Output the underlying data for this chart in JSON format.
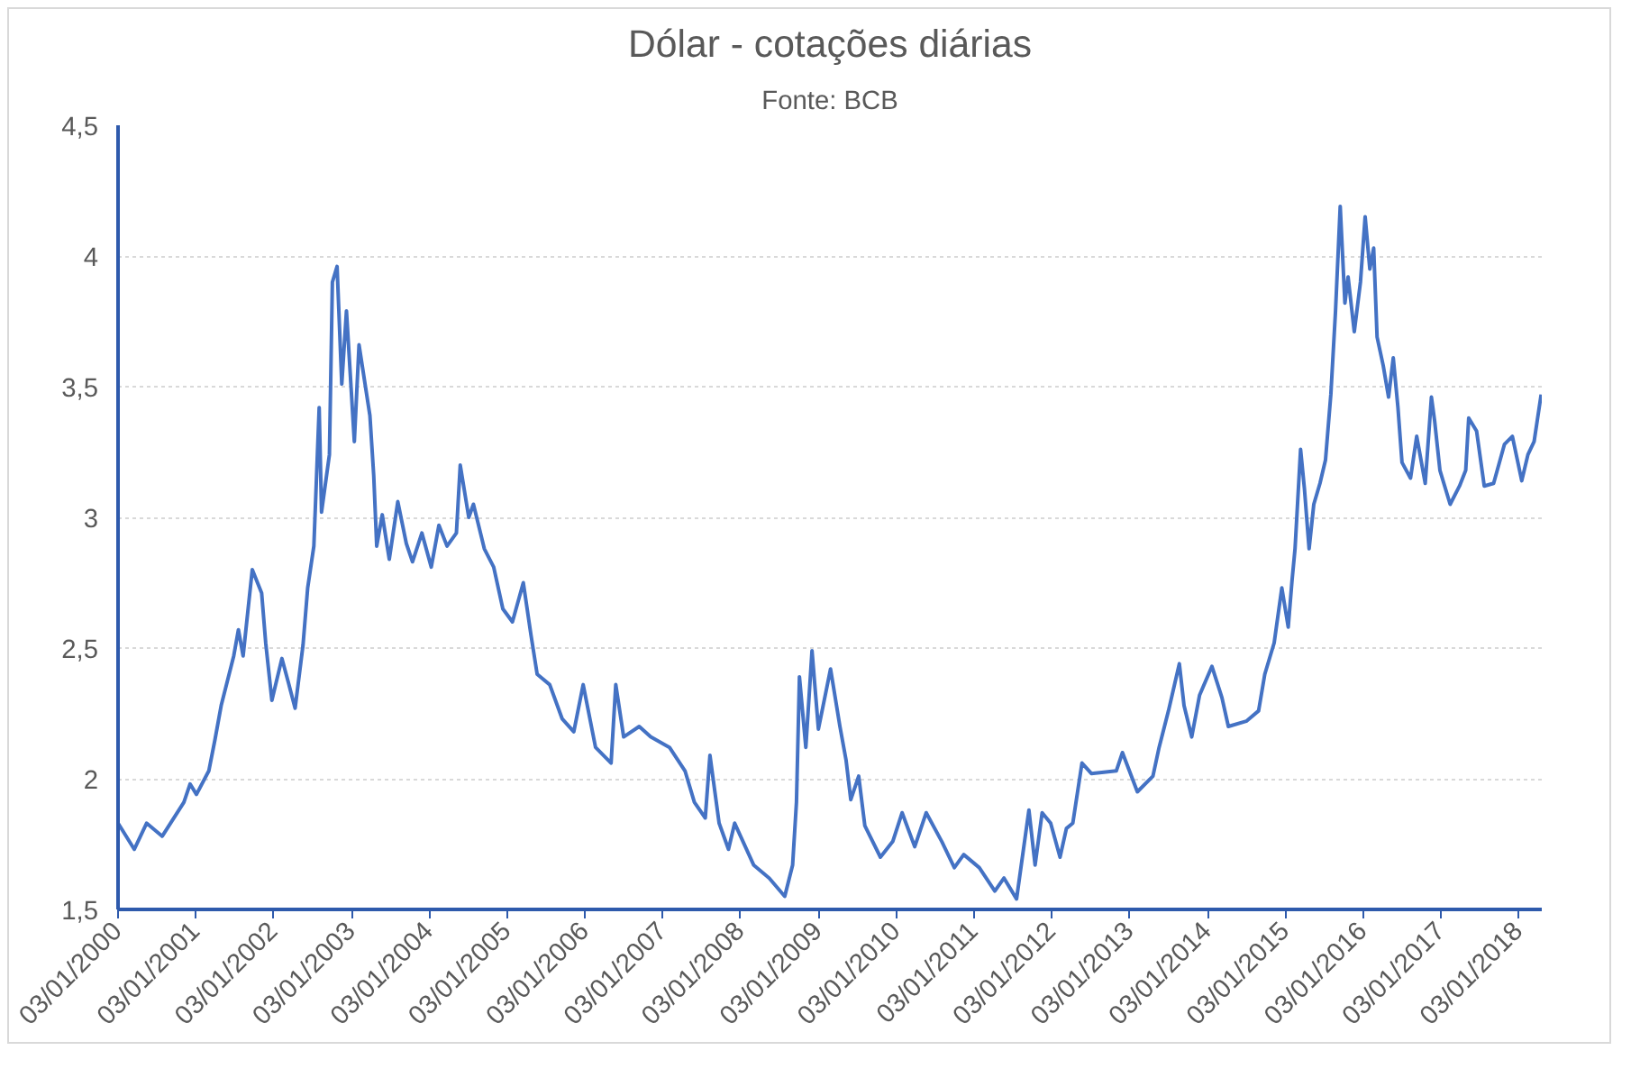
{
  "chart_data": {
    "type": "line",
    "title": "Dólar - cotações diárias",
    "subtitle": "Fonte: BCB",
    "x": [
      "2000-01-03",
      "2000-03-19",
      "2000-05-16",
      "2000-07-28",
      "2000-11-07",
      "2000-12-06",
      "2001-01-05",
      "2001-03-04",
      "2001-04-02",
      "2001-05-01",
      "2001-06-29",
      "2001-07-21",
      "2001-08-12",
      "2001-09-24",
      "2001-11-07",
      "2001-11-26",
      "2001-12-25",
      "2002-02-10",
      "2002-03-15",
      "2002-04-13",
      "2002-05-20",
      "2002-06-11",
      "2002-07-10",
      "2002-08-04",
      "2002-08-15",
      "2002-09-21",
      "2002-10-05",
      "2002-10-27",
      "2002-11-18",
      "2002-12-10",
      "2003-01-16",
      "2003-02-07",
      "2003-03-30",
      "2003-04-17",
      "2003-05-01",
      "2003-05-27",
      "2003-06-29",
      "2003-08-08",
      "2003-09-17",
      "2003-10-16",
      "2003-11-29",
      "2004-01-12",
      "2004-02-17",
      "2004-03-26",
      "2004-05-09",
      "2004-05-27",
      "2004-07-06",
      "2004-07-28",
      "2004-09-17",
      "2004-10-31",
      "2004-12-13",
      "2005-01-27",
      "2005-03-19",
      "2005-04-24",
      "2005-05-23",
      "2005-07-21",
      "2005-09-17",
      "2005-11-11",
      "2005-12-25",
      "2006-02-21",
      "2006-05-05",
      "2006-05-27",
      "2006-07-03",
      "2006-09-14",
      "2006-11-07",
      "2007-02-03",
      "2007-04-17",
      "2007-05-31",
      "2007-07-21",
      "2007-08-12",
      "2007-09-24",
      "2007-11-07",
      "2007-12-06",
      "2008-03-04",
      "2008-05-16",
      "2008-07-28",
      "2008-09-03",
      "2008-09-21",
      "2008-10-05",
      "2008-11-04",
      "2008-12-03",
      "2009-01-02",
      "2009-02-28",
      "2009-04-13",
      "2009-05-12",
      "2009-06-03",
      "2009-07-10",
      "2009-08-08",
      "2009-10-20",
      "2009-12-17",
      "2010-01-30",
      "2010-03-30",
      "2010-05-23",
      "2010-08-04",
      "2010-10-02",
      "2010-11-15",
      "2011-01-27",
      "2011-04-10",
      "2011-05-23",
      "2011-07-21",
      "2011-09-17",
      "2011-10-16",
      "2011-11-18",
      "2011-12-28",
      "2012-02-10",
      "2012-03-11",
      "2012-04-10",
      "2012-05-23",
      "2012-07-06",
      "2012-10-31",
      "2012-11-29",
      "2013-02-07",
      "2013-04-21",
      "2013-05-20",
      "2013-07-03",
      "2013-08-23",
      "2013-09-14",
      "2013-10-20",
      "2013-11-26",
      "2014-01-23",
      "2014-03-11",
      "2014-04-10",
      "2014-07-03",
      "2014-08-30",
      "2014-09-28",
      "2014-11-11",
      "2014-12-17",
      "2015-01-16",
      "2015-02-03",
      "2015-02-17",
      "2015-03-15",
      "2015-04-02",
      "2015-04-24",
      "2015-05-16",
      "2015-06-14",
      "2015-07-10",
      "2015-08-04",
      "2015-08-26",
      "2015-09-17",
      "2015-10-09",
      "2015-10-24",
      "2015-11-22",
      "2015-12-21",
      "2016-01-12",
      "2016-02-03",
      "2016-02-21",
      "2016-03-08",
      "2016-04-06",
      "2016-05-01",
      "2016-05-23",
      "2016-06-14",
      "2016-07-03",
      "2016-08-12",
      "2016-09-10",
      "2016-10-20",
      "2016-11-18",
      "2016-12-03",
      "2016-12-28",
      "2017-02-14",
      "2017-03-30",
      "2017-04-28",
      "2017-05-12",
      "2017-06-18",
      "2017-07-24",
      "2017-09-06",
      "2017-10-27",
      "2017-12-03",
      "2018-01-16",
      "2018-02-14",
      "2018-03-15",
      "2018-04-17"
    ],
    "series": [
      {
        "color": "#4472c4",
        "values": [
          1.83,
          1.73,
          1.83,
          1.78,
          1.91,
          1.98,
          1.94,
          2.03,
          2.15,
          2.28,
          2.47,
          2.57,
          2.47,
          2.8,
          2.71,
          2.52,
          2.3,
          2.46,
          2.36,
          2.27,
          2.51,
          2.73,
          2.89,
          3.42,
          3.02,
          3.24,
          3.9,
          3.96,
          3.51,
          3.79,
          3.29,
          3.66,
          3.39,
          3.16,
          2.89,
          3.01,
          2.84,
          3.06,
          2.9,
          2.83,
          2.94,
          2.81,
          2.97,
          2.89,
          2.94,
          3.2,
          3.0,
          3.05,
          2.88,
          2.81,
          2.65,
          2.6,
          2.75,
          2.55,
          2.4,
          2.36,
          2.23,
          2.18,
          2.36,
          2.12,
          2.06,
          2.36,
          2.16,
          2.2,
          2.16,
          2.12,
          2.03,
          1.91,
          1.85,
          2.09,
          1.83,
          1.73,
          1.83,
          1.67,
          1.62,
          1.55,
          1.67,
          1.91,
          2.39,
          2.12,
          2.49,
          2.19,
          2.42,
          2.2,
          2.07,
          1.92,
          2.01,
          1.82,
          1.7,
          1.76,
          1.87,
          1.74,
          1.87,
          1.76,
          1.66,
          1.71,
          1.66,
          1.57,
          1.62,
          1.54,
          1.88,
          1.67,
          1.87,
          1.83,
          1.7,
          1.81,
          1.83,
          2.06,
          2.02,
          2.03,
          2.1,
          1.95,
          2.01,
          2.12,
          2.26,
          2.44,
          2.28,
          2.16,
          2.32,
          2.43,
          2.31,
          2.2,
          2.22,
          2.26,
          2.4,
          2.52,
          2.73,
          2.58,
          2.76,
          2.88,
          3.26,
          3.11,
          2.88,
          3.05,
          3.13,
          3.22,
          3.47,
          3.79,
          4.19,
          3.82,
          3.92,
          3.71,
          3.9,
          4.15,
          3.95,
          4.03,
          3.69,
          3.58,
          3.46,
          3.61,
          3.42,
          3.21,
          3.15,
          3.31,
          3.13,
          3.46,
          3.37,
          3.18,
          3.05,
          3.12,
          3.18,
          3.38,
          3.33,
          3.12,
          3.13,
          3.28,
          3.31,
          3.14,
          3.24,
          3.29,
          3.47
        ]
      }
    ],
    "xlim": [
      "2000-01-03",
      "2018-04-20"
    ],
    "xticks": [
      {
        "value": "2000-01-03",
        "label": "03/01/2000"
      },
      {
        "value": "2001-01-03",
        "label": "03/01/2001"
      },
      {
        "value": "2002-01-03",
        "label": "03/01/2002"
      },
      {
        "value": "2003-01-03",
        "label": "03/01/2003"
      },
      {
        "value": "2004-01-03",
        "label": "03/01/2004"
      },
      {
        "value": "2005-01-03",
        "label": "03/01/2005"
      },
      {
        "value": "2006-01-03",
        "label": "03/01/2006"
      },
      {
        "value": "2007-01-03",
        "label": "03/01/2007"
      },
      {
        "value": "2008-01-03",
        "label": "03/01/2008"
      },
      {
        "value": "2009-01-03",
        "label": "03/01/2009"
      },
      {
        "value": "2010-01-03",
        "label": "03/01/2010"
      },
      {
        "value": "2011-01-03",
        "label": "03/01/2011"
      },
      {
        "value": "2012-01-03",
        "label": "03/01/2012"
      },
      {
        "value": "2013-01-03",
        "label": "03/01/2013"
      },
      {
        "value": "2014-01-03",
        "label": "03/01/2014"
      },
      {
        "value": "2015-01-03",
        "label": "03/01/2015"
      },
      {
        "value": "2016-01-03",
        "label": "03/01/2016"
      },
      {
        "value": "2017-01-03",
        "label": "03/01/2017"
      },
      {
        "value": "2018-01-03",
        "label": "03/01/2018"
      }
    ],
    "ylim": [
      1.5,
      4.5
    ],
    "yticks": [
      {
        "value": 1.5,
        "label": "1,5"
      },
      2,
      {
        "value": 2.5,
        "label": "2,5"
      },
      3,
      {
        "value": 3.5,
        "label": "3,5"
      },
      4,
      {
        "value": 4.5,
        "label": "4,5"
      }
    ],
    "grid": "y",
    "marker": "none",
    "line_style": "solid"
  }
}
